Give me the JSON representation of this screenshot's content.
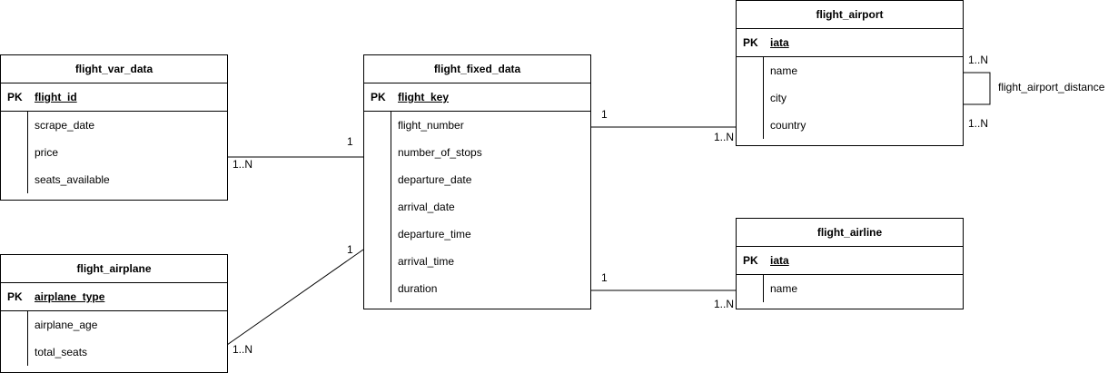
{
  "entities": {
    "flight_var_data": {
      "title": "flight_var_data",
      "pk": "PK",
      "key": "flight_id",
      "attrs": [
        "scrape_date",
        "price",
        "seats_available"
      ]
    },
    "flight_fixed_data": {
      "title": "flight_fixed_data",
      "pk": "PK",
      "key": "flight_key",
      "attrs": [
        "flight_number",
        "number_of_stops",
        "departure_date",
        "arrival_date",
        "departure_time",
        "arrival_time",
        "duration"
      ]
    },
    "flight_airport": {
      "title": "flight_airport",
      "pk": "PK",
      "key": "iata",
      "attrs": [
        "name",
        "city",
        "country"
      ]
    },
    "flight_airplane": {
      "title": "flight_airplane",
      "pk": "PK",
      "key": "airplane_type",
      "attrs": [
        "airplane_age",
        "total_seats"
      ]
    },
    "flight_airline": {
      "title": "flight_airline",
      "pk": "PK",
      "key": "iata",
      "attrs": [
        "name"
      ]
    }
  },
  "relations": {
    "var_fixed": {
      "one": "1",
      "many": "1..N"
    },
    "fixed_airport": {
      "one": "1",
      "many": "1..N"
    },
    "airplane_fixed": {
      "one": "1",
      "many": "1..N"
    },
    "fixed_airline": {
      "one": "1",
      "many": "1..N"
    },
    "airport_distance": {
      "name": "flight_airport_distance",
      "card_top": "1..N",
      "card_bottom": "1..N"
    }
  }
}
